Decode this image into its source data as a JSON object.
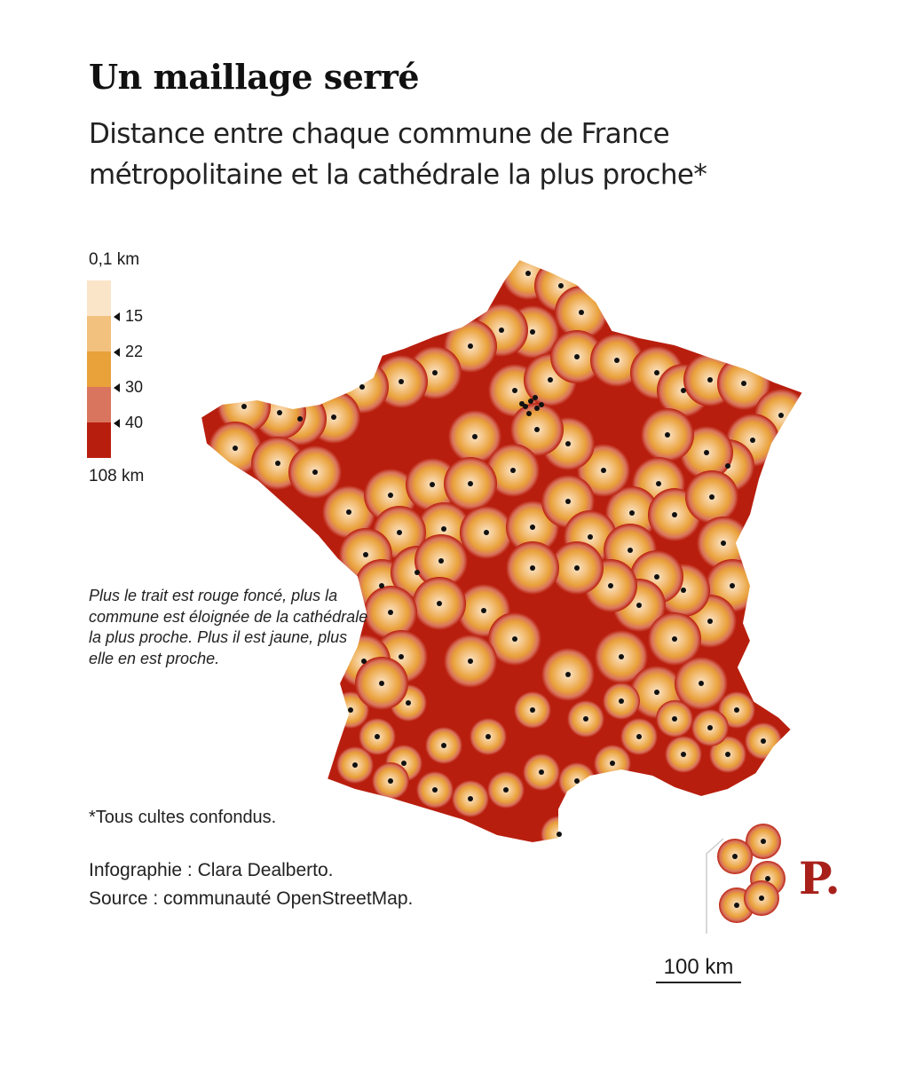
{
  "header": {
    "title": "Un maillage serré",
    "subtitle": "Distance entre chaque commune de France métropolitaine et la cathédrale la plus proche*"
  },
  "legend": {
    "top_label": "0,1 km",
    "bottom_label": "108 km",
    "ticks": [
      "15",
      "22",
      "30",
      "40"
    ],
    "colors": [
      "#fbe5c8",
      "#f3c17e",
      "#e9a13a",
      "#d9745e",
      "#b81e0e"
    ]
  },
  "note": "Plus le trait est rouge foncé, plus la commune est éloignée de la cathédrale la plus proche. Plus il est jaune, plus elle en est proche.",
  "footnote": "*Tous cultes confondus.",
  "credits": {
    "line1": "Infographie : Clara Dealberto.",
    "line2": "Source : communauté OpenStreetMap."
  },
  "logo": "P.",
  "scale": {
    "label": "100 km"
  },
  "colors": {
    "near": "#fbe5c8",
    "mid": "#e9a13a",
    "far": "#b81e0e",
    "dot": "#111111",
    "logo": "#a8201a"
  }
}
